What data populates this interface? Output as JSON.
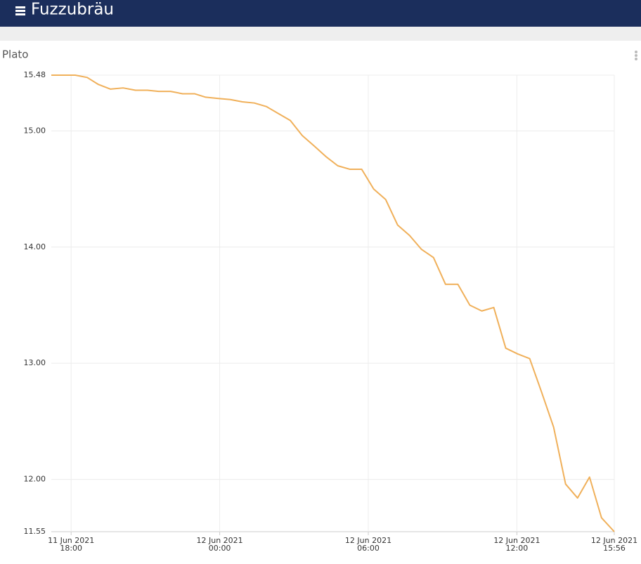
{
  "header": {
    "title": "Fuzzubräu"
  },
  "panel": {
    "title": "Plato"
  },
  "chart_data": {
    "type": "line",
    "x": [
      "2021-06-11T17:12",
      "2021-06-11T18:10",
      "2021-06-11T18:39",
      "2021-06-11T19:06",
      "2021-06-11T19:35",
      "2021-06-11T20:06",
      "2021-06-11T20:36",
      "2021-06-11T21:05",
      "2021-06-11T21:32",
      "2021-06-11T22:01",
      "2021-06-11T22:30",
      "2021-06-11T22:59",
      "2021-06-11T23:26",
      "2021-06-11T23:55",
      "2021-06-12T00:26",
      "2021-06-12T00:55",
      "2021-06-12T01:24",
      "2021-06-12T01:53",
      "2021-06-12T02:22",
      "2021-06-12T02:51",
      "2021-06-12T03:20",
      "2021-06-12T03:49",
      "2021-06-12T04:17",
      "2021-06-12T04:46",
      "2021-06-12T05:15",
      "2021-06-12T05:44",
      "2021-06-12T06:13",
      "2021-06-12T06:42",
      "2021-06-12T07:11",
      "2021-06-12T07:40",
      "2021-06-12T08:09",
      "2021-06-12T08:38",
      "2021-06-12T09:07",
      "2021-06-12T09:37",
      "2021-06-12T10:06",
      "2021-06-12T10:35",
      "2021-06-12T11:04",
      "2021-06-12T11:33",
      "2021-06-12T12:02",
      "2021-06-12T12:31",
      "2021-06-12T13:00",
      "2021-06-12T13:29",
      "2021-06-12T13:58",
      "2021-06-12T14:27",
      "2021-06-12T14:56",
      "2021-06-12T15:25",
      "2021-06-12T15:56"
    ],
    "series": [
      {
        "color": "#f0b05a",
        "values": [
          15.48,
          15.48,
          15.46,
          15.4,
          15.36,
          15.37,
          15.35,
          15.35,
          15.34,
          15.34,
          15.32,
          15.32,
          15.29,
          15.28,
          15.27,
          15.25,
          15.24,
          15.21,
          15.15,
          15.09,
          14.96,
          14.87,
          14.78,
          14.7,
          14.67,
          14.67,
          14.5,
          14.41,
          14.19,
          14.1,
          13.98,
          13.91,
          13.68,
          13.68,
          13.5,
          13.45,
          13.48,
          13.13,
          13.08,
          13.04,
          12.75,
          12.45,
          11.96,
          11.84,
          12.02,
          11.67,
          11.55
        ]
      }
    ],
    "xlim": [
      "2021-06-11T17:12",
      "2021-06-12T15:56"
    ],
    "xticks": [
      {
        "value": "2021-06-11T18:00",
        "label": [
          "11 Jun 2021",
          "18:00"
        ]
      },
      {
        "value": "2021-06-12T00:00",
        "label": [
          "12 Jun 2021",
          "00:00"
        ]
      },
      {
        "value": "2021-06-12T06:00",
        "label": [
          "12 Jun 2021",
          "06:00"
        ]
      },
      {
        "value": "2021-06-12T12:00",
        "label": [
          "12 Jun 2021",
          "12:00"
        ]
      },
      {
        "value": "2021-06-12T15:56",
        "label": [
          "12 Jun 2021",
          "15:56"
        ]
      }
    ],
    "ylim": [
      11.55,
      15.48
    ],
    "yticks": [
      11.55,
      {
        "value": 12,
        "label": "12.00"
      },
      {
        "value": 13,
        "label": "13.00"
      },
      {
        "value": 14,
        "label": "14.00"
      },
      {
        "value": 15,
        "label": "15.00"
      },
      15.48
    ],
    "grid": true
  }
}
